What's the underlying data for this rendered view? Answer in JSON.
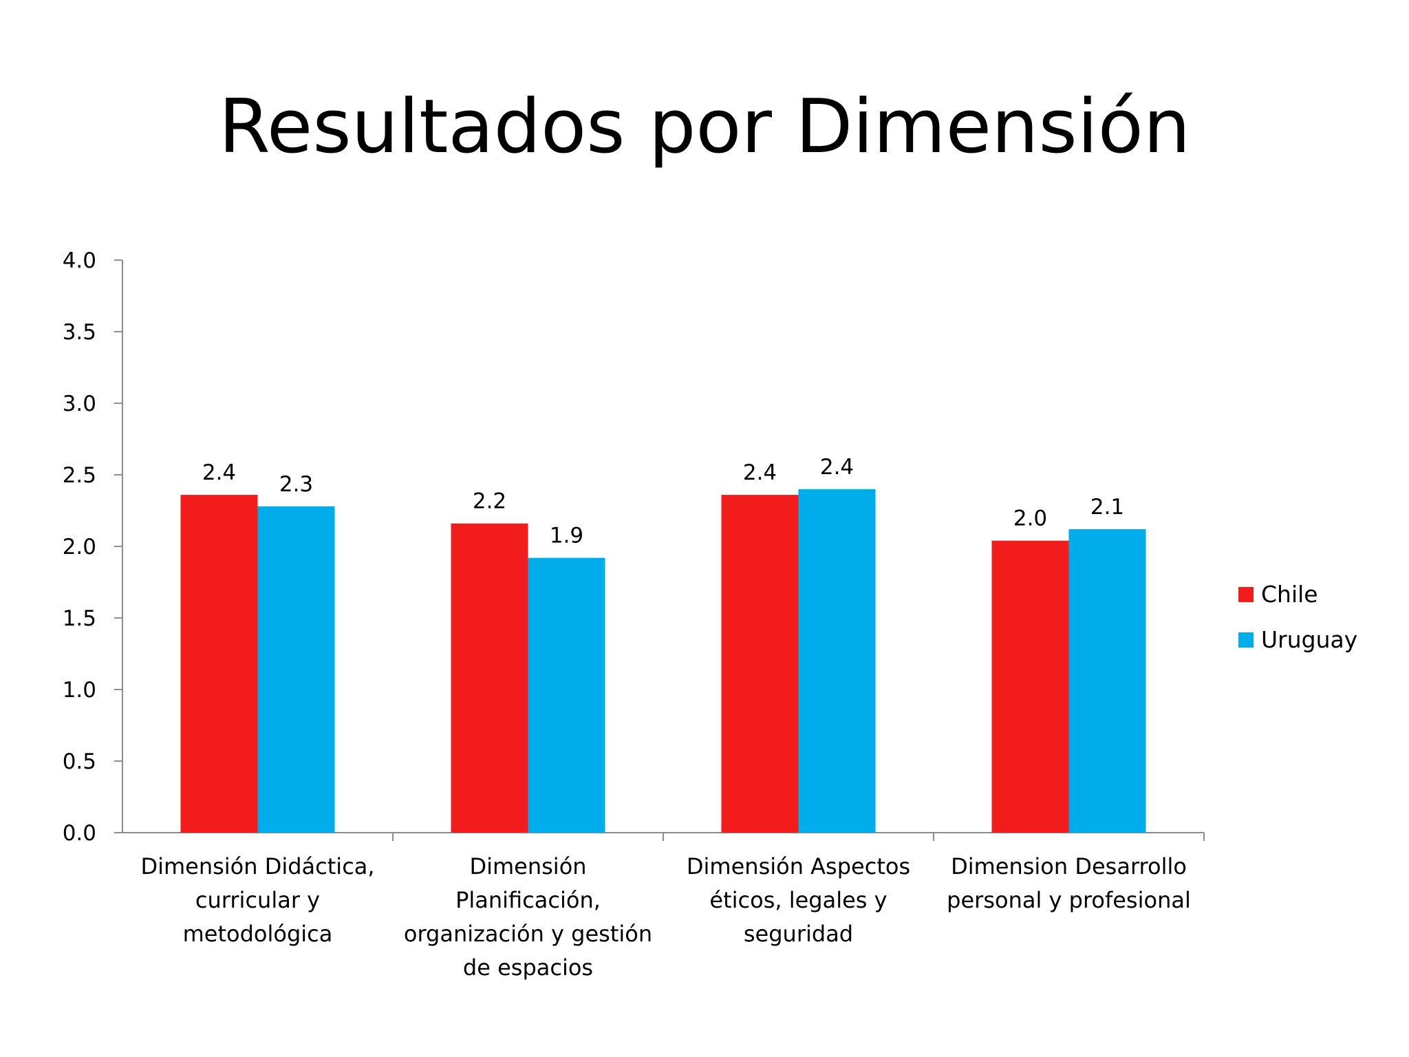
{
  "slide": {
    "title": "Resultados por Dimensión"
  },
  "chart_data": {
    "type": "bar",
    "title": "",
    "xlabel": "",
    "ylabel": "",
    "ylim": [
      0,
      4
    ],
    "yticks": [
      "0.0",
      "0.5",
      "1.0",
      "1.5",
      "2.0",
      "2.5",
      "3.0",
      "3.5",
      "4.0"
    ],
    "grid": false,
    "legend_position": "right",
    "categories": [
      [
        "Dimensión Didáctica,",
        "curricular y",
        "metodológica"
      ],
      [
        "Dimensión",
        "Planificación,",
        "organización y gestión",
        "de espacios"
      ],
      [
        "Dimensión Aspectos",
        "éticos, legales y",
        "seguridad"
      ],
      [
        "Dimension Desarrollo",
        "personal y profesional"
      ]
    ],
    "series": [
      {
        "name": "Chile",
        "color": "#f21c1c",
        "values": [
          2.36,
          2.16,
          2.36,
          2.04
        ],
        "labels": [
          "2.4",
          "2.2",
          "2.4",
          "2.0"
        ]
      },
      {
        "name": "Uruguay",
        "color": "#00adeb",
        "values": [
          2.28,
          1.92,
          2.4,
          2.12
        ],
        "labels": [
          "2.3",
          "1.9",
          "2.4",
          "2.1"
        ]
      }
    ],
    "axis_color": "#8c8c8c"
  }
}
